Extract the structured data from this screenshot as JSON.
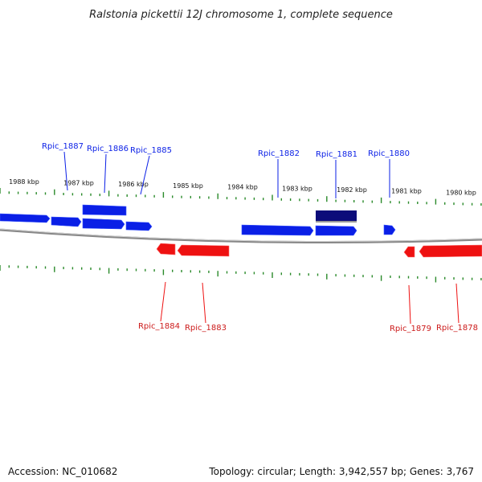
{
  "title": "Ralstonia pickettii 12J chromosome 1, complete sequence",
  "footer": {
    "accession": "Accession: NC_010682",
    "summary": "Topology: circular; Length: 3,942,557 bp; Genes: 3,767"
  },
  "colors": {
    "forward": "#0a1fe6",
    "forward_selected": "#0c0c7a",
    "reverse": "#ee1111",
    "tick": "#2a8a2a",
    "backbone": "#888888"
  },
  "scale_ticks": [
    {
      "label": "1988 kbp"
    },
    {
      "label": "1987 kbp"
    },
    {
      "label": "1986 kbp"
    },
    {
      "label": "1985 kbp"
    },
    {
      "label": "1984 kbp"
    },
    {
      "label": "1983 kbp"
    },
    {
      "label": "1982 kbp"
    },
    {
      "label": "1981 kbp"
    },
    {
      "label": "1980 kbp"
    }
  ],
  "forward_genes": [
    {
      "label": "Rpic_1887"
    },
    {
      "label": "Rpic_1886"
    },
    {
      "label": "Rpic_1885"
    },
    {
      "label": "Rpic_1882"
    },
    {
      "label": "Rpic_1881"
    },
    {
      "label": "Rpic_1880"
    }
  ],
  "reverse_genes": [
    {
      "label": "Rpic_1884"
    },
    {
      "label": "Rpic_1883"
    },
    {
      "label": "Rpic_1879"
    },
    {
      "label": "Rpic_1878"
    }
  ]
}
